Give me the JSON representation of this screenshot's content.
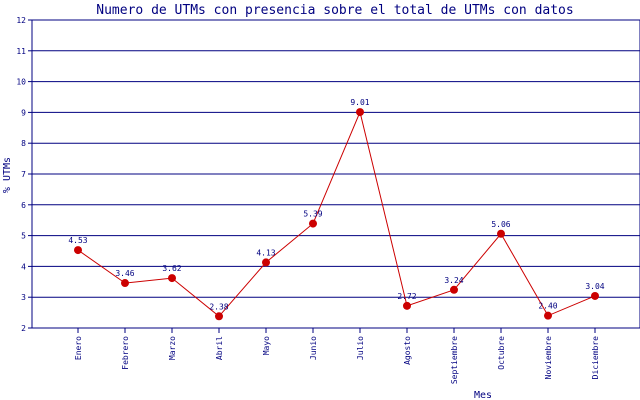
{
  "chart_data": {
    "type": "line",
    "title": "Numero de UTMs con presencia sobre el total de UTMs con datos",
    "xlabel": "Mes",
    "ylabel": "% UTMs",
    "categories": [
      "Enero",
      "Febrero",
      "Marzo",
      "Abril",
      "Mayo",
      "Junio",
      "Julio",
      "Agosto",
      "Septiembre",
      "Octubre",
      "Noviembre",
      "Diciembre"
    ],
    "values": [
      4.53,
      3.46,
      3.62,
      2.38,
      4.13,
      5.39,
      9.01,
      2.72,
      3.24,
      5.06,
      2.4,
      3.04
    ],
    "value_labels": [
      "4.53",
      "3.46",
      "3.62",
      "2.38",
      "4.13",
      "5.39",
      "9.01",
      "2.72",
      "3.24",
      "5.06",
      "2.40",
      "3.04"
    ],
    "ylim": [
      2,
      12
    ],
    "yticks": [
      "2",
      "3",
      "4",
      "5",
      "6",
      "7",
      "8",
      "9",
      "10",
      "11",
      "12"
    ],
    "grid": true,
    "colors": {
      "line": "#cc0000",
      "marker": "#cc0000",
      "grid": "#000080",
      "text": "#000080"
    }
  }
}
